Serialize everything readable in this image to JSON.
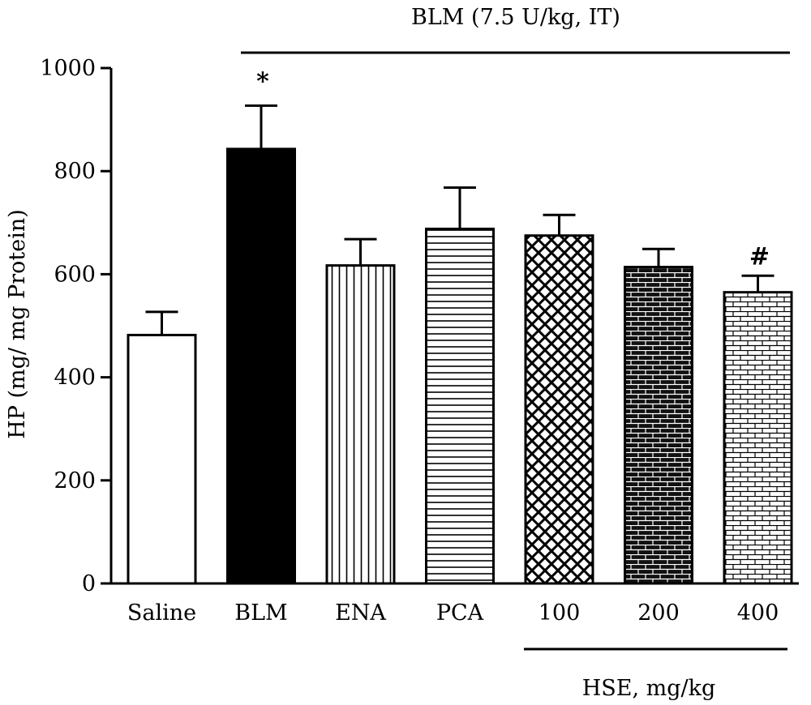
{
  "chart_data": {
    "type": "bar",
    "categories": [
      "Saline",
      "BLM",
      "ENA",
      "PCA",
      "100",
      "200",
      "400"
    ],
    "values": [
      482,
      843,
      617,
      688,
      675,
      614,
      565
    ],
    "errors": [
      45,
      84,
      51,
      80,
      40,
      35,
      32
    ],
    "patterns": [
      "none",
      "solid",
      "vertical",
      "horizontal",
      "crosshatch",
      "brick-dark",
      "brick-light"
    ],
    "annotations": [
      "",
      "*",
      "",
      "",
      "",
      "",
      "#"
    ],
    "ylabel": "HP (mg/ mg Protein)",
    "ylim": [
      0,
      1000
    ],
    "yticks": [
      0,
      200,
      400,
      600,
      800,
      1000
    ],
    "groups": [
      {
        "label": "BLM (7.5 U/kg, IT)",
        "from": 1,
        "to": 6,
        "position": "top"
      },
      {
        "label": "HSE, mg/kg",
        "from": 4,
        "to": 6,
        "position": "bottom"
      }
    ],
    "grid": false,
    "legend": "none"
  }
}
